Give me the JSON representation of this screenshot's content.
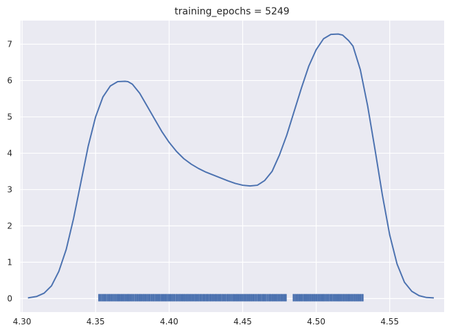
{
  "chart_data": {
    "type": "line",
    "title": "training_epochs = 5249",
    "xlabel": "",
    "ylabel": "",
    "xlim": [
      4.299,
      4.587
    ],
    "ylim": [
      -0.37,
      7.65
    ],
    "grid": true,
    "x_ticks": [
      4.3,
      4.35,
      4.4,
      4.45,
      4.5,
      4.55
    ],
    "x_tick_labels": [
      "4.30",
      "4.35",
      "4.40",
      "4.45",
      "4.50",
      "4.55"
    ],
    "y_ticks": [
      0,
      1,
      2,
      3,
      4,
      5,
      6,
      7
    ],
    "y_tick_labels": [
      "0",
      "1",
      "2",
      "3",
      "4",
      "5",
      "6",
      "7"
    ],
    "colors": {
      "background": "#eaeaf2",
      "grid": "#ffffff",
      "series": "#4c72b0"
    },
    "series": [
      {
        "kind": "kde",
        "x": [
          4.304,
          4.31,
          4.315,
          4.32,
          4.325,
          4.33,
          4.335,
          4.34,
          4.345,
          4.35,
          4.355,
          4.36,
          4.365,
          4.37,
          4.372,
          4.375,
          4.38,
          4.385,
          4.39,
          4.395,
          4.4,
          4.405,
          4.41,
          4.415,
          4.42,
          4.425,
          4.43,
          4.435,
          4.44,
          4.445,
          4.45,
          4.455,
          4.46,
          4.465,
          4.47,
          4.475,
          4.48,
          4.485,
          4.49,
          4.495,
          4.5,
          4.505,
          4.51,
          4.515,
          4.518,
          4.522,
          4.525,
          4.53,
          4.535,
          4.54,
          4.545,
          4.55,
          4.555,
          4.56,
          4.565,
          4.57,
          4.575,
          4.58
        ],
        "y": [
          0.02,
          0.06,
          0.15,
          0.35,
          0.75,
          1.35,
          2.2,
          3.2,
          4.2,
          5.0,
          5.55,
          5.85,
          5.97,
          5.98,
          5.97,
          5.9,
          5.65,
          5.3,
          4.95,
          4.6,
          4.3,
          4.05,
          3.85,
          3.7,
          3.58,
          3.48,
          3.4,
          3.32,
          3.24,
          3.17,
          3.12,
          3.1,
          3.12,
          3.25,
          3.5,
          3.95,
          4.5,
          5.15,
          5.8,
          6.4,
          6.85,
          7.15,
          7.27,
          7.28,
          7.25,
          7.1,
          6.95,
          6.3,
          5.3,
          4.1,
          2.85,
          1.75,
          0.95,
          0.45,
          0.2,
          0.08,
          0.03,
          0.02
        ]
      },
      {
        "kind": "rug",
        "range": [
          4.352,
          4.532
        ],
        "gaps": [
          [
            4.48,
            4.484
          ]
        ],
        "height": 0.05
      }
    ]
  }
}
